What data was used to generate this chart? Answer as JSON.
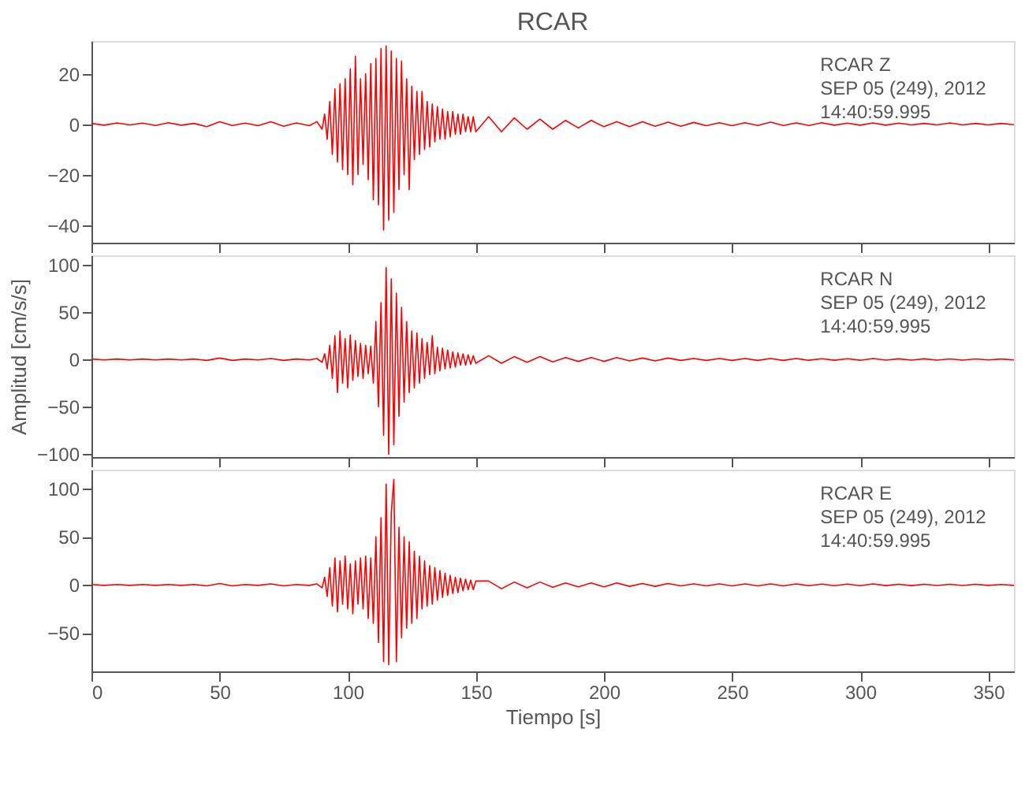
{
  "chart_data": [
    {
      "type": "line",
      "title": "RCAR",
      "annotations": [
        "RCAR   Z",
        "SEP 05 (249), 2012",
        "14:40:59.995"
      ],
      "tick_labels": "y",
      "grid": false,
      "marker": "none",
      "line_style": "solid",
      "xlim": [
        0,
        360
      ],
      "xticks": [
        0,
        50,
        100,
        150,
        200,
        250,
        300,
        350
      ],
      "ylim": [
        -47,
        33
      ],
      "yticks": [
        -40,
        -20,
        0,
        20
      ],
      "x": [
        0,
        5,
        10,
        15,
        20,
        25,
        30,
        35,
        40,
        45,
        50,
        55,
        60,
        65,
        70,
        75,
        80,
        85,
        88,
        90,
        91,
        92,
        93,
        94,
        95,
        96,
        97,
        98,
        99,
        100,
        101,
        102,
        103,
        104,
        105,
        106,
        107,
        108,
        109,
        110,
        111,
        112,
        113,
        114,
        115,
        116,
        117,
        118,
        119,
        120,
        121,
        122,
        123,
        124,
        125,
        126,
        127,
        128,
        129,
        130,
        131,
        132,
        133,
        134,
        135,
        136,
        137,
        138,
        139,
        140,
        141,
        142,
        143,
        144,
        145,
        146,
        147,
        148,
        149,
        150,
        155,
        160,
        165,
        170,
        175,
        180,
        185,
        190,
        195,
        200,
        205,
        210,
        215,
        220,
        225,
        230,
        235,
        240,
        245,
        250,
        255,
        260,
        265,
        270,
        275,
        280,
        285,
        290,
        295,
        300,
        305,
        310,
        315,
        320,
        325,
        330,
        335,
        340,
        345,
        350,
        355,
        360
      ],
      "series": [
        {
          "color": "#ff0000",
          "values": [
            0.3,
            -0.4,
            0.5,
            -0.3,
            0.4,
            -0.5,
            0.6,
            -0.4,
            0.3,
            -1,
            1,
            -0.5,
            0.4,
            -0.6,
            1,
            -0.8,
            0.5,
            -0.6,
            1,
            -2,
            4,
            -6,
            9,
            -12,
            14,
            -15,
            16,
            -18,
            18,
            -20,
            22,
            -24,
            27,
            -20,
            18,
            -16,
            20,
            -22,
            24,
            -30,
            26,
            -32,
            30,
            -42,
            31,
            -38,
            29,
            -35,
            26,
            -26,
            25,
            -20,
            18,
            -26,
            15,
            -14,
            13,
            -12,
            13,
            -10,
            9,
            -9,
            8,
            -7,
            7,
            -6,
            6,
            -6,
            5,
            -5,
            5,
            -4,
            4,
            -4,
            4,
            -3,
            3,
            -3,
            3,
            -3,
            3,
            -3,
            2.5,
            -2,
            2,
            -2,
            1.5,
            -1.5,
            1.5,
            -1,
            1,
            -1,
            1,
            -0.8,
            0.8,
            -0.8,
            0.7,
            -0.6,
            0.6,
            -0.6,
            0.6,
            -0.5,
            0.8,
            -0.5,
            0.5,
            -0.5,
            0.6,
            -0.4,
            0.4,
            -0.4,
            0.5,
            -0.4,
            0.4,
            -0.3,
            0.3,
            -0.3,
            0.5,
            -0.3,
            0.3,
            -0.3,
            0.3,
            -0.2
          ]
        }
      ]
    },
    {
      "type": "line",
      "ylabel": "Amplitud [cm/s/s]",
      "annotations": [
        "RCAR   N",
        "SEP 05 (249), 2012",
        "14:40:59.995"
      ],
      "tick_labels": "y",
      "grid": false,
      "marker": "none",
      "line_style": "solid",
      "xlim": [
        0,
        360
      ],
      "xticks": [
        0,
        50,
        100,
        150,
        200,
        250,
        300,
        350
      ],
      "ylim": [
        -103,
        110
      ],
      "yticks": [
        -100,
        -50,
        0,
        50,
        100
      ],
      "x": [
        0,
        5,
        10,
        15,
        20,
        25,
        30,
        35,
        40,
        45,
        50,
        55,
        60,
        65,
        70,
        75,
        80,
        85,
        88,
        90,
        91,
        92,
        93,
        94,
        95,
        96,
        97,
        98,
        99,
        100,
        101,
        102,
        103,
        104,
        105,
        106,
        107,
        108,
        109,
        110,
        111,
        112,
        113,
        114,
        115,
        116,
        117,
        118,
        119,
        120,
        121,
        122,
        123,
        124,
        125,
        126,
        127,
        128,
        129,
        130,
        131,
        132,
        133,
        134,
        135,
        136,
        137,
        138,
        139,
        140,
        141,
        142,
        143,
        144,
        145,
        146,
        147,
        148,
        149,
        150,
        155,
        160,
        165,
        170,
        175,
        180,
        185,
        190,
        195,
        200,
        205,
        210,
        215,
        220,
        225,
        230,
        235,
        240,
        245,
        250,
        255,
        260,
        265,
        270,
        275,
        280,
        285,
        290,
        295,
        300,
        305,
        310,
        315,
        320,
        325,
        330,
        335,
        340,
        345,
        350,
        355,
        360
      ],
      "series": [
        {
          "color": "#ff0000",
          "values": [
            0.5,
            -0.5,
            0.5,
            -0.5,
            0.5,
            -0.5,
            0.5,
            -0.5,
            0.5,
            -1,
            1.5,
            -1,
            0.5,
            -0.5,
            1,
            -1,
            0.5,
            -0.5,
            1,
            -3,
            6,
            -10,
            15,
            -20,
            25,
            -35,
            30,
            -25,
            22,
            -30,
            26,
            -22,
            20,
            -18,
            17,
            -20,
            15,
            -15,
            14,
            -25,
            40,
            -50,
            60,
            -80,
            97,
            -100,
            85,
            -90,
            70,
            -60,
            55,
            -45,
            40,
            -35,
            30,
            -30,
            28,
            -25,
            22,
            -20,
            18,
            -16,
            25,
            -15,
            13,
            -12,
            12,
            -10,
            10,
            -9,
            8,
            -8,
            7,
            -6,
            6,
            -6,
            5,
            -5,
            4,
            -4,
            4,
            -4,
            3,
            -3,
            3,
            -2.5,
            2,
            -2,
            2,
            -2,
            2,
            -1.5,
            1.5,
            -1.5,
            1.5,
            -1,
            1,
            -1,
            1,
            -1,
            1,
            -1,
            1,
            -1,
            1,
            -0.8,
            0.8,
            -0.8,
            0.8,
            -0.8,
            1,
            -0.7,
            0.7,
            -0.7,
            0.7,
            -0.6,
            0.6,
            -0.6,
            0.6,
            -0.5,
            0.5,
            -0.5
          ]
        }
      ]
    },
    {
      "type": "line",
      "xlabel": "Tiempo [s]",
      "annotations": [
        "RCAR   E",
        "SEP 05 (249), 2012",
        "14:40:59.995"
      ],
      "grid": false,
      "marker": "none",
      "line_style": "solid",
      "xlim": [
        0,
        360
      ],
      "xticks": [
        0,
        50,
        100,
        150,
        200,
        250,
        300,
        350
      ],
      "ylim": [
        -90,
        120
      ],
      "yticks": [
        -50,
        0,
        50,
        100
      ],
      "x": [
        0,
        5,
        10,
        15,
        20,
        25,
        30,
        35,
        40,
        45,
        50,
        55,
        60,
        65,
        70,
        75,
        80,
        85,
        88,
        90,
        91,
        92,
        93,
        94,
        95,
        96,
        97,
        98,
        99,
        100,
        101,
        102,
        103,
        104,
        105,
        106,
        107,
        108,
        109,
        110,
        111,
        112,
        113,
        114,
        115,
        116,
        117,
        118,
        119,
        120,
        121,
        122,
        123,
        124,
        125,
        126,
        127,
        128,
        129,
        130,
        131,
        132,
        133,
        134,
        135,
        136,
        137,
        138,
        139,
        140,
        141,
        142,
        143,
        144,
        145,
        146,
        147,
        148,
        149,
        150,
        155,
        160,
        165,
        170,
        175,
        180,
        185,
        190,
        195,
        200,
        205,
        210,
        215,
        220,
        225,
        230,
        235,
        240,
        245,
        250,
        255,
        260,
        265,
        270,
        275,
        280,
        285,
        290,
        295,
        300,
        305,
        310,
        315,
        320,
        325,
        330,
        335,
        340,
        345,
        350,
        355,
        360
      ],
      "series": [
        {
          "color": "#ff0000",
          "values": [
            0.5,
            -0.5,
            0.5,
            -0.5,
            0.5,
            -0.5,
            0.5,
            -0.5,
            0.5,
            -1,
            1.5,
            -1,
            0.5,
            -0.5,
            1,
            -1,
            0.5,
            -0.5,
            1,
            -3,
            8,
            -12,
            18,
            -22,
            28,
            -28,
            25,
            -20,
            30,
            -25,
            22,
            -30,
            25,
            -20,
            28,
            -25,
            30,
            -35,
            28,
            -40,
            50,
            -60,
            70,
            -80,
            105,
            -83,
            75,
            110,
            -80,
            60,
            -55,
            50,
            -45,
            45,
            -40,
            35,
            -35,
            30,
            -25,
            25,
            -22,
            20,
            -20,
            18,
            -16,
            15,
            -13,
            12,
            -11,
            10,
            -9,
            8,
            -8,
            7,
            -6,
            6,
            -5,
            5,
            -5,
            4,
            4,
            -4,
            3,
            -3,
            3,
            -2.5,
            2,
            -2,
            2,
            -2,
            2,
            -1.5,
            1.5,
            -1.5,
            1.5,
            -1,
            1,
            -1,
            1,
            -1,
            1,
            -1,
            1,
            -1,
            1,
            -0.8,
            0.8,
            -0.8,
            0.8,
            -0.8,
            1,
            -0.7,
            0.7,
            -0.7,
            0.7,
            -0.6,
            0.6,
            -0.6,
            0.6,
            -0.5,
            0.5,
            -0.5
          ]
        }
      ]
    }
  ]
}
